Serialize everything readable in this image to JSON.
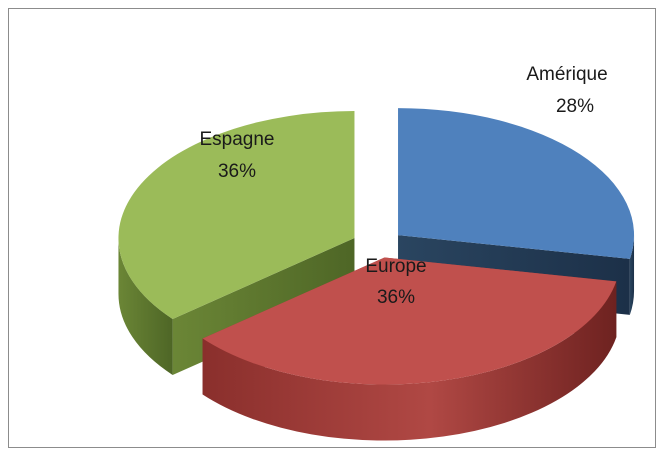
{
  "chart_data": {
    "type": "pie",
    "style": "3d-exploded",
    "categories": [
      "Amérique",
      "Europe",
      "Espagne"
    ],
    "values": [
      28,
      36,
      36
    ],
    "value_labels": [
      "28%",
      "36%",
      "36%"
    ],
    "colors": [
      "#4f81bd",
      "#c0504d",
      "#9bbb59"
    ],
    "title": "",
    "legend": "none",
    "grid": false
  }
}
